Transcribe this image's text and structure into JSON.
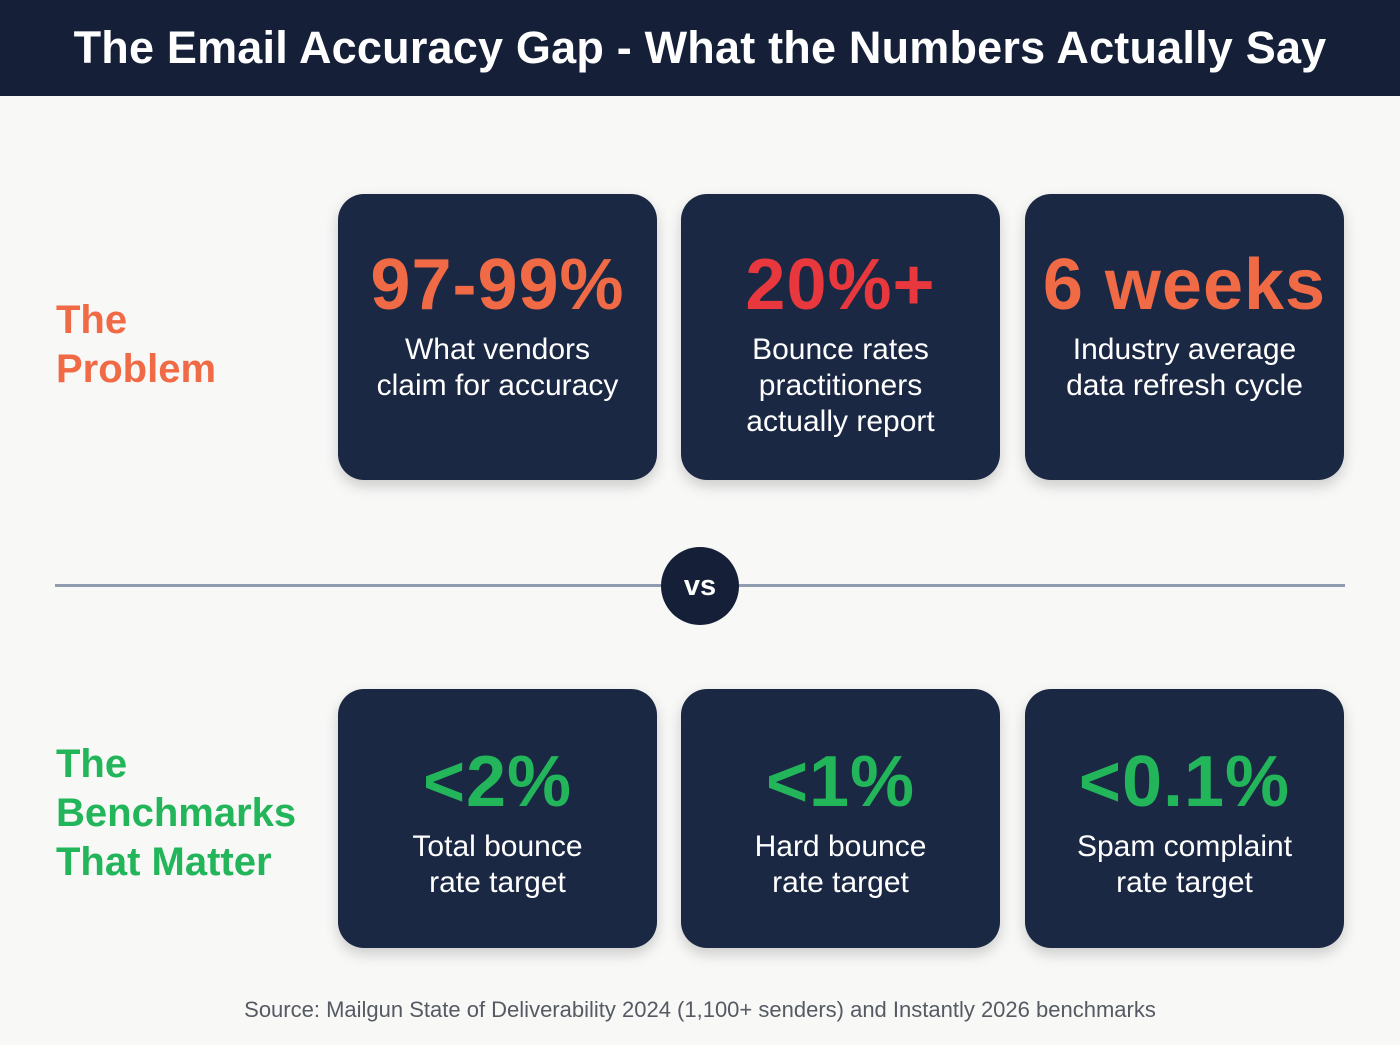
{
  "header": {
    "title": "The Email Accuracy Gap - What the Numbers Actually Say"
  },
  "problem": {
    "label": "The\nProblem",
    "cards": [
      {
        "value": "97-99%",
        "desc": "What vendors\nclaim for accuracy",
        "color": "#f06a45"
      },
      {
        "value": "20%+",
        "desc": "Bounce rates\npractitioners\nactually report",
        "color": "#e8383d"
      },
      {
        "value": "6 weeks",
        "desc": "Industry average\ndata refresh cycle",
        "color": "#f06a45"
      }
    ]
  },
  "vs_label": "vs",
  "benchmarks": {
    "label": "The\nBenchmarks\nThat Matter",
    "cards": [
      {
        "value": "<2%",
        "desc": "Total bounce\nrate target",
        "color": "#22b55a"
      },
      {
        "value": "<1%",
        "desc": "Hard bounce\nrate target",
        "color": "#22b55a"
      },
      {
        "value": "<0.1%",
        "desc": "Spam complaint\nrate target",
        "color": "#22b55a"
      }
    ]
  },
  "source": "Source: Mailgun State of Deliverability 2024 (1,100+ senders) and Instantly 2026 benchmarks"
}
